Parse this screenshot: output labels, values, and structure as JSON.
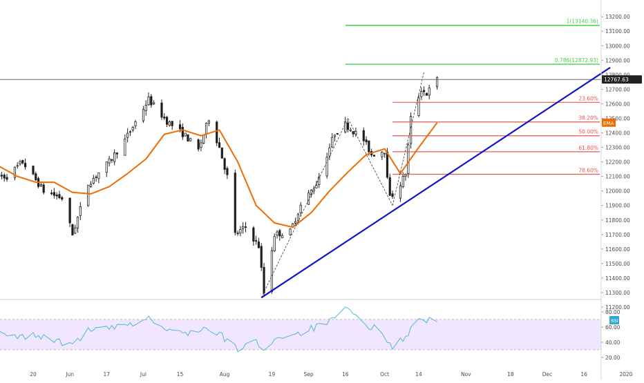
{
  "chart_data": [
    {
      "type": "candlestick",
      "panel": "price",
      "title": "",
      "ylim": [
        11200,
        13280
      ],
      "y_ticks": [
        11200,
        11300,
        11400,
        11500,
        11600,
        11700,
        11800,
        11900,
        12000,
        12100,
        12200,
        12300,
        12400,
        12500,
        12600,
        12700,
        12800,
        12900,
        13000,
        13100,
        13200
      ],
      "y_tick_labels": [
        "11200.00",
        "11300.00",
        "11400.00",
        "11500.00",
        "11600.00",
        "11700.00",
        "11800.00",
        "11900.00",
        "12000.00",
        "12100.00",
        "12200.00",
        "12300.00",
        "12400.00",
        "12500.00",
        "12600.00",
        "12700.00",
        "12800.00",
        "12900.00",
        "13000.00",
        "13100.00",
        "13200.00"
      ],
      "last_price": 12767.63,
      "last_price_label": "12767.63",
      "price_path_anchors": [
        {
          "date": "2019-05-10",
          "value": 12100
        },
        {
          "date": "2019-05-16",
          "value": 12200
        },
        {
          "date": "2019-05-24",
          "value": 12000
        },
        {
          "date": "2019-05-31",
          "value": 11950
        },
        {
          "date": "2019-06-04",
          "value": 11700
        },
        {
          "date": "2019-06-10",
          "value": 12050
        },
        {
          "date": "2019-06-18",
          "value": 12200
        },
        {
          "date": "2019-06-24",
          "value": 12350
        },
        {
          "date": "2019-07-03",
          "value": 12630
        },
        {
          "date": "2019-07-10",
          "value": 12480
        },
        {
          "date": "2019-07-17",
          "value": 12380
        },
        {
          "date": "2019-07-22",
          "value": 12280
        },
        {
          "date": "2019-07-26",
          "value": 12500
        },
        {
          "date": "2019-07-30",
          "value": 12300
        },
        {
          "date": "2019-08-02",
          "value": 12100
        },
        {
          "date": "2019-08-05",
          "value": 11700
        },
        {
          "date": "2019-08-09",
          "value": 11750
        },
        {
          "date": "2019-08-14",
          "value": 11620
        },
        {
          "date": "2019-08-16",
          "value": 11300
        },
        {
          "date": "2019-08-20",
          "value": 11700
        },
        {
          "date": "2019-08-26",
          "value": 11720
        },
        {
          "date": "2019-08-30",
          "value": 11900
        },
        {
          "date": "2019-09-05",
          "value": 12050
        },
        {
          "date": "2019-09-12",
          "value": 12400
        },
        {
          "date": "2019-09-16",
          "value": 12460
        },
        {
          "date": "2019-09-23",
          "value": 12350
        },
        {
          "date": "2019-09-26",
          "value": 12250
        },
        {
          "date": "2019-10-01",
          "value": 12280
        },
        {
          "date": "2019-10-03",
          "value": 11950
        },
        {
          "date": "2019-10-07",
          "value": 12050
        },
        {
          "date": "2019-10-09",
          "value": 12120
        },
        {
          "date": "2019-10-11",
          "value": 12500
        },
        {
          "date": "2019-10-15",
          "value": 12700
        },
        {
          "date": "2019-10-17",
          "value": 12670
        },
        {
          "date": "2019-10-21",
          "value": 12767.63
        }
      ],
      "ema": {
        "label": "EMA",
        "color": "#ef6c00",
        "points": [
          {
            "date": "2019-05-06",
            "value": 12180
          },
          {
            "date": "2019-05-14",
            "value": 12100
          },
          {
            "date": "2019-05-21",
            "value": 12060
          },
          {
            "date": "2019-05-28",
            "value": 12060
          },
          {
            "date": "2019-06-04",
            "value": 11990
          },
          {
            "date": "2019-06-11",
            "value": 11980
          },
          {
            "date": "2019-06-18",
            "value": 12030
          },
          {
            "date": "2019-06-25",
            "value": 12120
          },
          {
            "date": "2019-07-02",
            "value": 12220
          },
          {
            "date": "2019-07-09",
            "value": 12390
          },
          {
            "date": "2019-07-16",
            "value": 12420
          },
          {
            "date": "2019-07-23",
            "value": 12380
          },
          {
            "date": "2019-07-30",
            "value": 12420
          },
          {
            "date": "2019-08-06",
            "value": 12200
          },
          {
            "date": "2019-08-13",
            "value": 11900
          },
          {
            "date": "2019-08-20",
            "value": 11780
          },
          {
            "date": "2019-08-27",
            "value": 11750
          },
          {
            "date": "2019-09-03",
            "value": 11850
          },
          {
            "date": "2019-09-10",
            "value": 12000
          },
          {
            "date": "2019-09-17",
            "value": 12130
          },
          {
            "date": "2019-09-24",
            "value": 12250
          },
          {
            "date": "2019-10-01",
            "value": 12290
          },
          {
            "date": "2019-10-07",
            "value": 12120
          },
          {
            "date": "2019-10-14",
            "value": 12300
          },
          {
            "date": "2019-10-21",
            "value": 12470
          }
        ]
      },
      "trendline": {
        "color": "#0d14c9",
        "from": {
          "date": "2019-08-15",
          "value": 11265
        },
        "to": {
          "date": "2019-12-26",
          "value": 12850
        }
      },
      "wave_lines": [
        {
          "from": {
            "date": "2019-08-15",
            "value": 11265
          },
          "to": {
            "date": "2019-09-17",
            "value": 12500
          }
        },
        {
          "from": {
            "date": "2019-09-17",
            "value": 12500
          },
          "to": {
            "date": "2019-10-04",
            "value": 11900
          }
        },
        {
          "from": {
            "date": "2019-10-04",
            "value": 11900
          },
          "to": {
            "date": "2019-10-16",
            "value": 12820
          }
        }
      ],
      "fib_levels": [
        {
          "label": "23.60%",
          "value": 12610,
          "color": "#e8554e"
        },
        {
          "label": "38.20%",
          "value": 12475,
          "color": "#e8554e"
        },
        {
          "label": "50.00%",
          "value": 12380,
          "color": "#e8554e"
        },
        {
          "label": "61.80%",
          "value": 12270,
          "color": "#e8554e"
        },
        {
          "label": "78.60%",
          "value": 12115,
          "color": "#e8554e"
        }
      ],
      "fib_extensions": [
        {
          "label": "0.786(12872.93)",
          "value": 12872.93,
          "color": "#44d24a"
        },
        {
          "label": "1(13140.36)",
          "value": 13140.36,
          "color": "#44d24a"
        }
      ],
      "x_ticks": [
        {
          "label": "20",
          "date": "2019-05-20"
        },
        {
          "label": "Jun",
          "date": "2019-06-03"
        },
        {
          "label": "17",
          "date": "2019-06-17"
        },
        {
          "label": "Jul",
          "date": "2019-07-01"
        },
        {
          "label": "15",
          "date": "2019-07-15"
        },
        {
          "label": "Aug",
          "date": "2019-08-01"
        },
        {
          "label": "19",
          "date": "2019-08-19"
        },
        {
          "label": "Sep",
          "date": "2019-09-02"
        },
        {
          "label": "16",
          "date": "2019-09-16"
        },
        {
          "label": "Oct",
          "date": "2019-10-01"
        },
        {
          "label": "14",
          "date": "2019-10-14"
        },
        {
          "label": "Nov",
          "date": "2019-11-01"
        },
        {
          "label": "18",
          "date": "2019-11-18"
        },
        {
          "label": "Dec",
          "date": "2019-12-02"
        },
        {
          "label": "16",
          "date": "2019-12-16"
        },
        {
          "label": "2020",
          "date": "2020-01-01"
        }
      ]
    },
    {
      "type": "line",
      "panel": "rsi",
      "label": "RSI",
      "color": "#4fb8d6",
      "band_fill": "#f1e6ff",
      "ylim": [
        10,
        95
      ],
      "band": [
        30,
        70
      ],
      "y_ticks": [
        20,
        40,
        60,
        80
      ],
      "y_tick_labels": [
        "20.00",
        "40.00",
        "60.00",
        "80.00"
      ],
      "path_anchors": [
        {
          "date": "2019-05-06",
          "value": 52
        },
        {
          "date": "2019-05-13",
          "value": 46
        },
        {
          "date": "2019-05-20",
          "value": 49
        },
        {
          "date": "2019-05-27",
          "value": 45
        },
        {
          "date": "2019-06-03",
          "value": 35
        },
        {
          "date": "2019-06-10",
          "value": 55
        },
        {
          "date": "2019-06-17",
          "value": 58
        },
        {
          "date": "2019-06-24",
          "value": 60
        },
        {
          "date": "2019-07-03",
          "value": 72
        },
        {
          "date": "2019-07-10",
          "value": 55
        },
        {
          "date": "2019-07-17",
          "value": 52
        },
        {
          "date": "2019-07-24",
          "value": 58
        },
        {
          "date": "2019-07-31",
          "value": 48
        },
        {
          "date": "2019-08-06",
          "value": 30
        },
        {
          "date": "2019-08-12",
          "value": 42
        },
        {
          "date": "2019-08-16",
          "value": 32
        },
        {
          "date": "2019-08-22",
          "value": 48
        },
        {
          "date": "2019-08-29",
          "value": 52
        },
        {
          "date": "2019-09-05",
          "value": 60
        },
        {
          "date": "2019-09-12",
          "value": 70
        },
        {
          "date": "2019-09-17",
          "value": 85
        },
        {
          "date": "2019-09-23",
          "value": 62
        },
        {
          "date": "2019-09-30",
          "value": 56
        },
        {
          "date": "2019-10-04",
          "value": 32
        },
        {
          "date": "2019-10-09",
          "value": 48
        },
        {
          "date": "2019-10-14",
          "value": 70
        },
        {
          "date": "2019-10-21",
          "value": 69
        }
      ]
    }
  ]
}
